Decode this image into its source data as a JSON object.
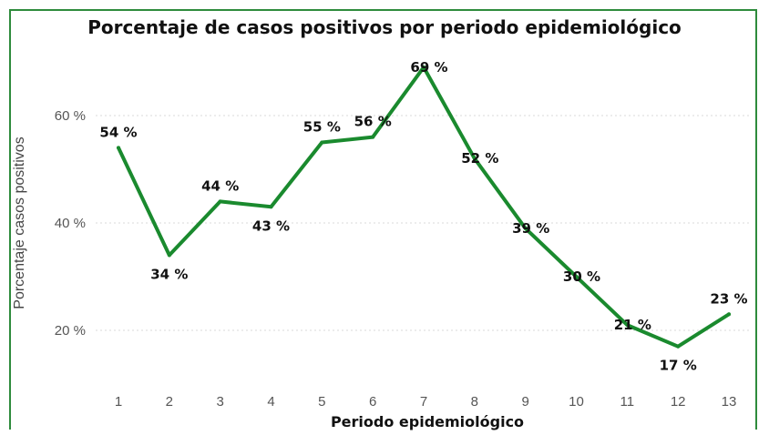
{
  "chart_data": {
    "type": "line",
    "title": "Porcentaje de casos positivos por periodo epidemiológico",
    "xlabel": "Periodo epidemiológico",
    "ylabel": "Porcentaje casos positivos",
    "x": [
      1,
      2,
      3,
      4,
      5,
      6,
      7,
      8,
      9,
      10,
      11,
      12,
      13
    ],
    "values": [
      54,
      34,
      44,
      43,
      55,
      56,
      69,
      52,
      39,
      30,
      21,
      17,
      23
    ],
    "data_labels": [
      "54 %",
      "34 %",
      "44 %",
      "43 %",
      "55 %",
      "56 %",
      "69 %",
      "52 %",
      "39 %",
      "30 %",
      "21 %",
      "17 %",
      "23 %"
    ],
    "y_ticks": [
      20,
      40,
      60
    ],
    "y_tick_labels": [
      "20 %",
      "40 %",
      "60 %"
    ],
    "ylim": [
      12,
      76
    ],
    "grid": true,
    "line_color": "#1a8a2e",
    "grid_color": "#d9d9d9"
  }
}
